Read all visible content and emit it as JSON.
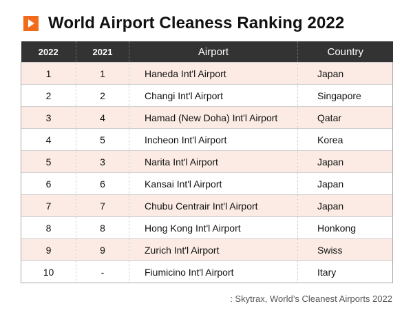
{
  "header": {
    "title": "World Airport Cleaness Ranking 2022",
    "accent_color": "#f26a1b",
    "icon": "play-arrow-icon"
  },
  "table": {
    "columns": [
      "2022",
      "2021",
      "Airport",
      "Country"
    ],
    "rows": [
      {
        "rank_2022": "1",
        "rank_2021": "1",
        "airport": "Haneda Int'l  Airport",
        "country": "Japan"
      },
      {
        "rank_2022": "2",
        "rank_2021": "2",
        "airport": "Changi  Int'l  Airport",
        "country": "Singapore"
      },
      {
        "rank_2022": "3",
        "rank_2021": "4",
        "airport": "Hamad (New Doha) Int'l  Airport",
        "country": "Qatar"
      },
      {
        "rank_2022": "4",
        "rank_2021": "5",
        "airport": "Incheon Int'l  Airport",
        "country": "Korea"
      },
      {
        "rank_2022": "5",
        "rank_2021": "3",
        "airport": "Narita  Int'l  Airport",
        "country": "Japan"
      },
      {
        "rank_2022": "6",
        "rank_2021": "6",
        "airport": "Kansai  Int'l  Airport",
        "country": "Japan"
      },
      {
        "rank_2022": "7",
        "rank_2021": "7",
        "airport": "Chubu Centrair Int'l  Airport",
        "country": "Japan"
      },
      {
        "rank_2022": "8",
        "rank_2021": "8",
        "airport": "Hong Kong Int'l  Airport",
        "country": "Honkong"
      },
      {
        "rank_2022": "9",
        "rank_2021": "9",
        "airport": "Zurich Int'l Airport",
        "country": "Swiss"
      },
      {
        "rank_2022": "10",
        "rank_2021": "-",
        "airport": "Fiumicino Int'l Airport",
        "country": "Itary"
      }
    ],
    "header_bg": "#333333",
    "stripe_color": "#fbebe4"
  },
  "source": ": Skytrax, World’s Cleanest Airports 2022",
  "chart_data": {
    "type": "table",
    "title": "World Airport Cleaness Ranking 2022",
    "columns": [
      "2022",
      "2021",
      "Airport",
      "Country"
    ],
    "rows": [
      [
        "1",
        "1",
        "Haneda Int'l  Airport",
        "Japan"
      ],
      [
        "2",
        "2",
        "Changi  Int'l  Airport",
        "Singapore"
      ],
      [
        "3",
        "4",
        "Hamad (New Doha) Int'l  Airport",
        "Qatar"
      ],
      [
        "4",
        "5",
        "Incheon Int'l  Airport",
        "Korea"
      ],
      [
        "5",
        "3",
        "Narita  Int'l  Airport",
        "Japan"
      ],
      [
        "6",
        "6",
        "Kansai  Int'l  Airport",
        "Japan"
      ],
      [
        "7",
        "7",
        "Chubu Centrair Int'l  Airport",
        "Japan"
      ],
      [
        "8",
        "8",
        "Hong Kong Int'l  Airport",
        "Honkong"
      ],
      [
        "9",
        "9",
        "Zurich Int'l Airport",
        "Swiss"
      ],
      [
        "10",
        "-",
        "Fiumicino Int'l Airport",
        "Itary"
      ]
    ],
    "source": ": Skytrax, World’s Cleanest Airports 2022"
  }
}
